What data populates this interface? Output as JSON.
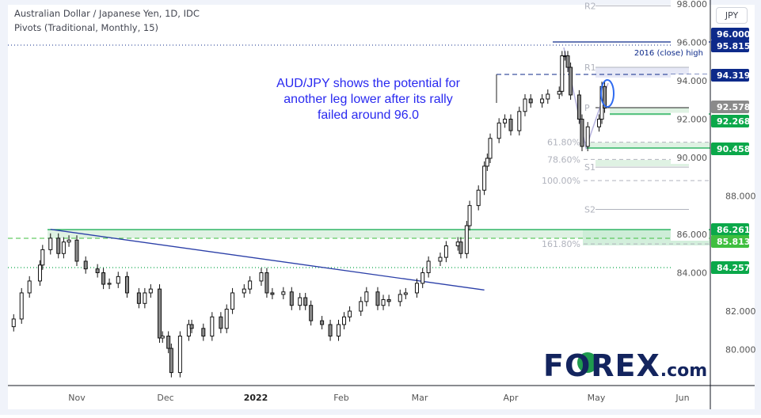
{
  "header": {
    "title": "Australian Dollar / Japanese Yen, 1D, IDC",
    "indicator": "Pivots (Traditional, Monthly, 15)"
  },
  "currency_button": "JPY",
  "annotation": [
    "AUD/JPY shows the potential for",
    "another leg lower after its rally",
    "failed around 96.0"
  ],
  "logo": {
    "text_main": "FOREX",
    "text_suffix": ".com",
    "brand_color": "#13245e",
    "accent_color": "#1f9a4e"
  },
  "chart_data": {
    "type": "candlestick",
    "symbol": "AUD/JPY",
    "interval": "1D",
    "x_tick_labels": [
      "Nov",
      "Dec",
      "2022",
      "Feb",
      "Mar",
      "Apr",
      "May",
      "Jun"
    ],
    "y_tick_labels": [
      "80.000",
      "82.000",
      "84.000",
      "86.000",
      "88.000",
      "90.000",
      "92.000",
      "94.000",
      "96.000",
      "98.000"
    ],
    "ylim": [
      78.4,
      98.2
    ],
    "grid": false,
    "closes": [
      [
        "2021-10-08",
        81.59
      ],
      [
        "2021-10-11",
        82.95
      ],
      [
        "2021-10-14",
        83.57
      ],
      [
        "2021-10-18",
        84.4
      ],
      [
        "2021-10-19",
        85.2
      ],
      [
        "2021-10-22",
        85.8
      ],
      [
        "2021-10-25",
        85.0
      ],
      [
        "2021-10-27",
        85.6
      ],
      [
        "2021-10-29",
        85.7
      ],
      [
        "2021-11-01",
        84.6
      ],
      [
        "2021-11-04",
        84.2
      ],
      [
        "2021-11-08",
        84.0
      ],
      [
        "2021-11-10",
        83.4
      ],
      [
        "2021-11-12",
        83.45
      ],
      [
        "2021-11-15",
        83.8
      ],
      [
        "2021-11-18",
        82.95
      ],
      [
        "2021-11-22",
        82.4
      ],
      [
        "2021-11-24",
        82.95
      ],
      [
        "2021-11-26",
        83.15
      ],
      [
        "2021-11-29",
        80.6
      ],
      [
        "2021-11-30",
        80.7
      ],
      [
        "2021-12-02",
        80.06
      ],
      [
        "2021-12-03",
        78.8
      ],
      [
        "2021-12-06",
        80.7
      ],
      [
        "2021-12-09",
        81.3
      ],
      [
        "2021-12-10",
        81.1
      ],
      [
        "2021-12-14",
        80.7
      ],
      [
        "2021-12-17",
        81.7
      ],
      [
        "2021-12-20",
        81.1
      ],
      [
        "2021-12-22",
        82.1
      ],
      [
        "2021-12-24",
        82.95
      ],
      [
        "2021-12-28",
        83.15
      ],
      [
        "2021-12-30",
        83.57
      ],
      [
        "2022-01-03",
        84.0
      ],
      [
        "2022-01-05",
        82.95
      ],
      [
        "2022-01-07",
        82.87
      ],
      [
        "2022-01-11",
        83.0
      ],
      [
        "2022-01-14",
        82.3
      ],
      [
        "2022-01-17",
        82.7
      ],
      [
        "2022-01-19",
        82.3
      ],
      [
        "2022-01-21",
        81.5
      ],
      [
        "2022-01-25",
        81.3
      ],
      [
        "2022-01-28",
        80.7
      ],
      [
        "2022-01-31",
        81.3
      ],
      [
        "2022-02-02",
        81.7
      ],
      [
        "2022-02-04",
        82.0
      ],
      [
        "2022-02-08",
        82.5
      ],
      [
        "2022-02-10",
        83.0
      ],
      [
        "2022-02-14",
        82.3
      ],
      [
        "2022-02-16",
        82.6
      ],
      [
        "2022-02-18",
        82.5
      ],
      [
        "2022-02-22",
        82.87
      ],
      [
        "2022-02-24",
        82.95
      ],
      [
        "2022-02-28",
        83.45
      ],
      [
        "2022-03-02",
        84.0
      ],
      [
        "2022-03-04",
        84.6
      ],
      [
        "2022-03-08",
        84.8
      ],
      [
        "2022-03-10",
        85.4
      ],
      [
        "2022-03-14",
        85.6
      ],
      [
        "2022-03-15",
        85.0
      ],
      [
        "2022-03-17",
        86.45
      ],
      [
        "2022-03-18",
        87.5
      ],
      [
        "2022-03-21",
        88.3
      ],
      [
        "2022-03-23",
        89.55
      ],
      [
        "2022-03-24",
        89.96
      ],
      [
        "2022-03-25",
        91.0
      ],
      [
        "2022-03-28",
        91.8
      ],
      [
        "2022-03-30",
        92.0
      ],
      [
        "2022-04-01",
        91.4
      ],
      [
        "2022-04-04",
        92.4
      ],
      [
        "2022-04-06",
        93.05
      ],
      [
        "2022-04-08",
        92.85
      ],
      [
        "2022-04-12",
        93.05
      ],
      [
        "2022-04-14",
        93.3
      ],
      [
        "2022-04-18",
        93.45
      ],
      [
        "2022-04-19",
        95.3
      ],
      [
        "2022-04-20",
        95.3
      ],
      [
        "2022-04-21",
        94.7
      ],
      [
        "2022-04-22",
        93.26
      ],
      [
        "2022-04-25",
        92.0
      ],
      [
        "2022-04-26",
        90.58
      ],
      [
        "2022-04-28",
        91.6
      ],
      [
        "2022-05-02",
        92.0
      ],
      [
        "2022-05-03",
        93.7
      ],
      [
        "2022-05-04",
        92.578
      ]
    ],
    "price_labels": [
      {
        "value": "96.000",
        "color": "#0d2a8a"
      },
      {
        "value": "95.815",
        "color": "#0d2a8a"
      },
      {
        "value": "94.319",
        "color": "#0d2a8a"
      },
      {
        "value": "92.578",
        "color": "#8a8a8a"
      },
      {
        "value": "92.268",
        "color": "#0ba84a"
      },
      {
        "value": "90.458",
        "color": "#0ba84a"
      },
      {
        "value": "86.261",
        "color": "#0ba84a"
      },
      {
        "value": "85.813",
        "color": "#3fbf3f"
      },
      {
        "value": "84.257",
        "color": "#0ba84a"
      }
    ],
    "level_note": "2016 (close) high",
    "fib_levels": [
      {
        "label": "61.80%",
        "price": 90.8
      },
      {
        "label": "78.60%",
        "price": 89.9
      },
      {
        "label": "100.00%",
        "price": 88.8
      },
      {
        "label": "161.80%",
        "price": 85.5
      }
    ],
    "pivots": [
      {
        "label": "R2",
        "price": 97.9
      },
      {
        "label": "R1",
        "price": 94.7
      },
      {
        "label": "P",
        "price": 92.6
      },
      {
        "label": "S1",
        "price": 89.5
      },
      {
        "label": "S2",
        "price": 87.3
      }
    ],
    "trendline": [
      [
        "2021-10-22",
        86.26
      ],
      [
        "2022-03-23",
        83.1
      ]
    ]
  }
}
